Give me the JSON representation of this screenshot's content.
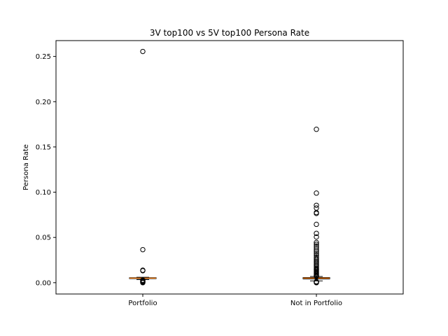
{
  "chart_data": {
    "type": "box",
    "title": "3V top100 vs 5V top100 Persona Rate",
    "xlabel": "",
    "ylabel": "Persona Rate",
    "ylim": [
      -0.0125,
      0.2675
    ],
    "yticks": [
      0.0,
      0.05,
      0.1,
      0.15,
      0.2,
      0.25
    ],
    "ytick_labels": [
      "0.00",
      "0.05",
      "0.10",
      "0.15",
      "0.20",
      "0.25"
    ],
    "categories": [
      "Portfolio",
      "Not in Portfolio"
    ],
    "grid": false,
    "colors": {
      "box": "#000000",
      "median": "#ff7f0e",
      "flier": "#000000"
    },
    "boxes": [
      {
        "category": "Portfolio",
        "whisker_low": 0.0035,
        "q1": 0.0045,
        "median": 0.005,
        "q3": 0.0055,
        "whisker_high": 0.006,
        "fliers": [
          0.2555,
          0.0365,
          0.0138,
          0.0132,
          0.0028,
          0.0022,
          0.0015,
          0.001,
          0.0005,
          0.0
        ]
      },
      {
        "category": "Not in Portfolio",
        "whisker_low": 0.002,
        "q1": 0.0042,
        "median": 0.005,
        "q3": 0.0057,
        "whisker_high": 0.0068,
        "fliers": [
          0.1695,
          0.099,
          0.0855,
          0.0825,
          0.0775,
          0.0765,
          0.0645,
          0.0545,
          0.0505,
          0.0445,
          0.0425,
          0.0405,
          0.0385,
          0.036,
          0.034,
          0.032,
          0.03,
          0.028,
          0.0265,
          0.025,
          0.0235,
          0.022,
          0.0205,
          0.019,
          0.0175,
          0.016,
          0.015,
          0.014,
          0.013,
          0.012,
          0.011,
          0.01,
          0.009,
          0.008,
          0.0075,
          0.007,
          0.0012,
          0.0008,
          0.0005,
          0.0003,
          0.0
        ]
      }
    ]
  }
}
